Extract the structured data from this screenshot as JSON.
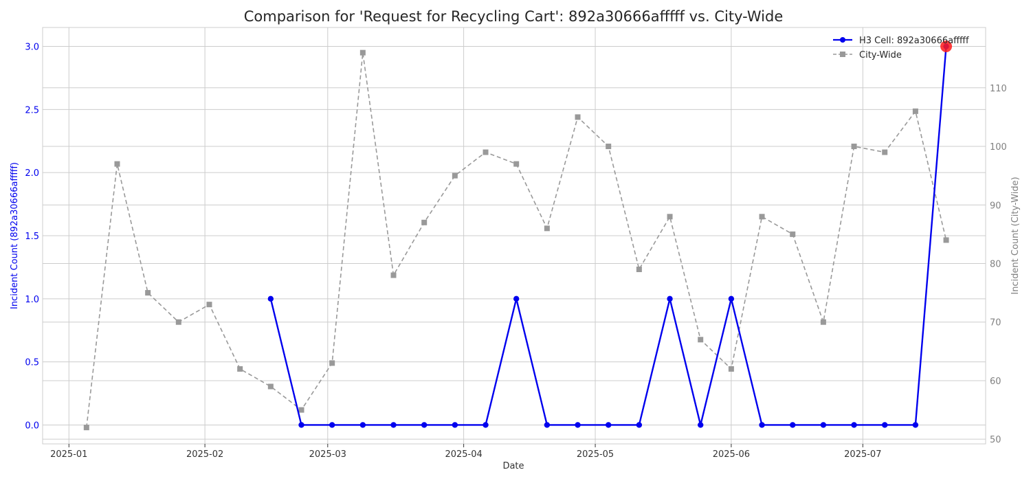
{
  "chart_data": {
    "type": "line",
    "title": "Comparison for 'Request for Recycling Cart': 892a30666afffff vs. City-Wide",
    "xlabel": "Date",
    "ylabel_left": "Incident Count (892a30666afffff)",
    "ylabel_right": "Incident Count (City-Wide)",
    "x_ticks": [
      "2025-01",
      "2025-02",
      "2025-03",
      "2025-04",
      "2025-05",
      "2025-06",
      "2025-07"
    ],
    "y_left_ticks": [
      "0.0",
      "0.5",
      "1.0",
      "1.5",
      "2.0",
      "2.5",
      "3.0"
    ],
    "y_right_ticks": [
      "50",
      "60",
      "70",
      "80",
      "90",
      "100",
      "110"
    ],
    "y_left_range": [
      -0.15,
      3.15
    ],
    "y_right_range": [
      49.2,
      120.3
    ],
    "grid": true,
    "legend_position": "top-right",
    "colors": {
      "h3": "#0000ee",
      "city": "#999999",
      "highlight": "#ff1a1a",
      "title": "#262626",
      "axis_text": "#333333"
    },
    "series": [
      {
        "name": "H3 Cell: 892a30666afffff",
        "axis": "left",
        "marker": "circle",
        "x": [
          "2025-02-16",
          "2025-02-23",
          "2025-03-02",
          "2025-03-09",
          "2025-03-16",
          "2025-03-23",
          "2025-03-30",
          "2025-04-06",
          "2025-04-13",
          "2025-04-20",
          "2025-04-27",
          "2025-05-04",
          "2025-05-11",
          "2025-05-18",
          "2025-05-25",
          "2025-06-01",
          "2025-06-08",
          "2025-06-15",
          "2025-06-22",
          "2025-06-29",
          "2025-07-06",
          "2025-07-13",
          "2025-07-20"
        ],
        "values": [
          1,
          0,
          0,
          0,
          0,
          0,
          0,
          0,
          1,
          0,
          0,
          0,
          0,
          1,
          0,
          1,
          0,
          0,
          0,
          0,
          0,
          0,
          3
        ]
      },
      {
        "name": "City-Wide",
        "axis": "right",
        "marker": "square",
        "x": [
          "2025-01-05",
          "2025-01-12",
          "2025-01-19",
          "2025-01-26",
          "2025-02-02",
          "2025-02-09",
          "2025-02-16",
          "2025-02-23",
          "2025-03-02",
          "2025-03-09",
          "2025-03-16",
          "2025-03-23",
          "2025-03-30",
          "2025-04-06",
          "2025-04-13",
          "2025-04-20",
          "2025-04-27",
          "2025-05-04",
          "2025-05-11",
          "2025-05-18",
          "2025-05-25",
          "2025-06-01",
          "2025-06-08",
          "2025-06-15",
          "2025-06-22",
          "2025-06-29",
          "2025-07-06",
          "2025-07-13",
          "2025-07-20"
        ],
        "values": [
          52,
          97,
          75,
          70,
          73,
          62,
          59,
          55,
          63,
          116,
          78,
          87,
          95,
          99,
          97,
          86,
          105,
          100,
          79,
          88,
          67,
          62,
          88,
          85,
          70,
          100,
          99,
          106,
          84
        ]
      }
    ],
    "highlight_point": {
      "series": "H3 Cell: 892a30666afffff",
      "x": "2025-07-20",
      "y": 3
    }
  }
}
